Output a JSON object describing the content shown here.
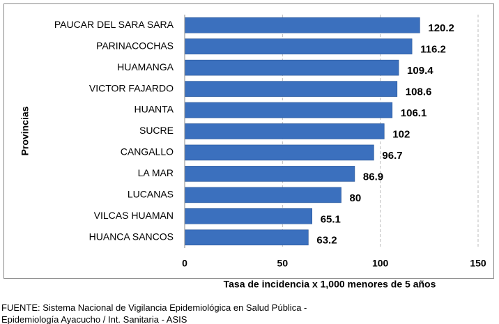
{
  "chart_data": {
    "type": "bar",
    "orientation": "horizontal",
    "x_label": "Tasa de incidencia  x 1,000 menores de 5 años",
    "y_label": "Provincias",
    "categories": [
      "PAUCAR DEL SARA SARA",
      "PARINACOCHAS",
      "HUAMANGA",
      "VICTOR FAJARDO",
      "HUANTA",
      "SUCRE",
      "CANGALLO",
      "LA MAR",
      "LUCANAS",
      "VILCAS HUAMAN",
      "HUANCA SANCOS"
    ],
    "values": [
      120.2,
      116.2,
      109.4,
      108.6,
      106.1,
      102,
      96.7,
      86.9,
      80,
      65.1,
      63.2
    ],
    "color": "#3b70be",
    "xlim": [
      0,
      150
    ],
    "xticks": [
      0,
      50,
      100,
      150
    ],
    "grid": true,
    "source": [
      "FUENTE:  Sistema Nacional de Vigilancia Epidemiológica en Salud Pública -",
      "Epidemiología  Ayacucho / Int. Sanitaria - ASIS"
    ]
  }
}
